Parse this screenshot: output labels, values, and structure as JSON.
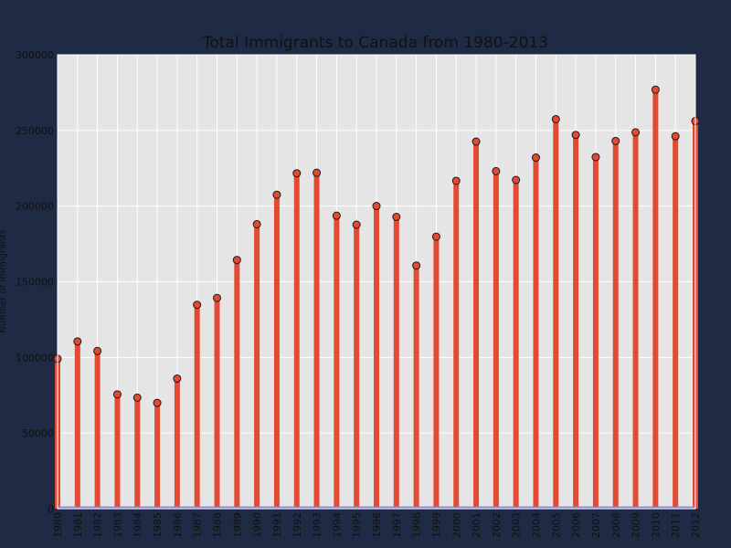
{
  "chart_data": {
    "type": "bar",
    "title": "Total Immigrants to Canada from 1980-2013",
    "xlabel": "",
    "ylabel": "Number of Immigrants",
    "ylim": [
      0,
      300000
    ],
    "yticks": [
      "0",
      "50000",
      "100000",
      "150000",
      "200000",
      "250000",
      "300000"
    ],
    "categories": [
      "1980",
      "1981",
      "1982",
      "1983",
      "1984",
      "1985",
      "1986",
      "1987",
      "1988",
      "1989",
      "1990",
      "1991",
      "1992",
      "1993",
      "1994",
      "1995",
      "1996",
      "1997",
      "1998",
      "1999",
      "2000",
      "2001",
      "2002",
      "2003",
      "2004",
      "2005",
      "2006",
      "2007",
      "2008",
      "2009",
      "2010",
      "2011",
      "2012"
    ],
    "values": [
      99137,
      110563,
      104271,
      75550,
      73417,
      69978,
      86048,
      134771,
      139306,
      164432,
      188054,
      207509,
      221688,
      222049,
      193665,
      187712,
      200085,
      192885,
      160727,
      179818,
      216712,
      242643,
      223111,
      217297,
      232083,
      257457,
      247057,
      232405,
      243047,
      248768,
      276956,
      246194,
      256222
    ],
    "grid": true,
    "colors": {
      "bar": "#e24a33",
      "marker_fill": "#e24a33",
      "marker_edge": "#1a1a1a",
      "baseline": "#8888dd",
      "plot_bg": "#e5e5e5",
      "figure_bg": "#1f2a44"
    }
  }
}
